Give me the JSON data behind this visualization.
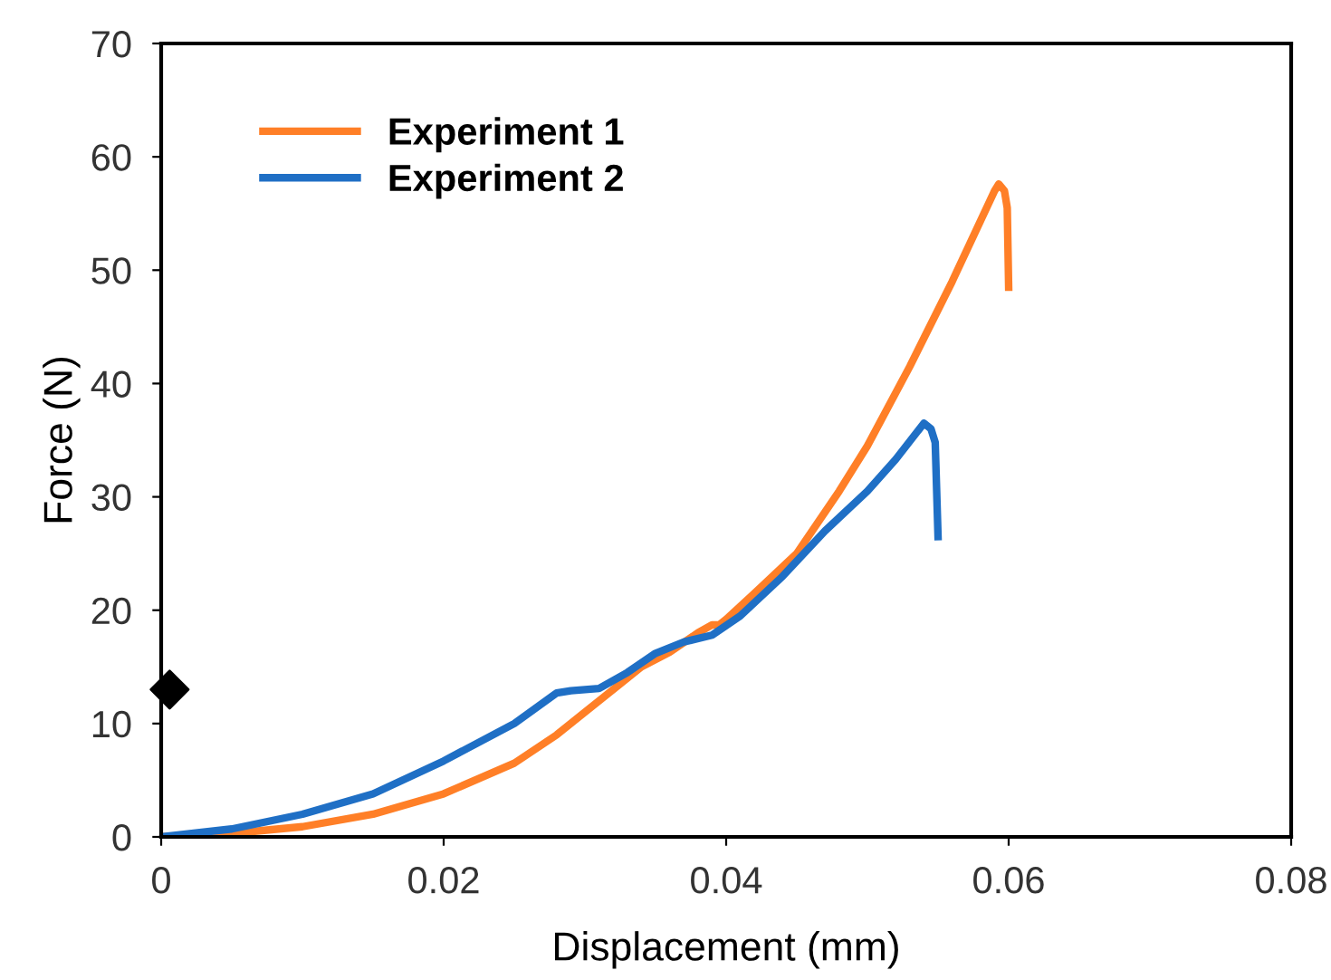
{
  "chart_data": {
    "type": "line",
    "xlabel": "Displacement (mm)",
    "ylabel": "Force (N)",
    "xlim": [
      0,
      0.08
    ],
    "xticks": [
      0,
      0.02,
      0.04,
      0.06,
      0.08
    ],
    "ylim": [
      0,
      70
    ],
    "yticks": [
      0,
      10,
      20,
      30,
      40,
      50,
      60,
      70
    ],
    "grid": false,
    "legend": "top left",
    "marker": "none",
    "line_style": "solid",
    "series": [
      {
        "name": "Experiment 1",
        "color": "#ff7f27",
        "x": [
          0,
          0.005,
          0.01,
          0.015,
          0.02,
          0.025,
          0.028,
          0.03,
          0.034,
          0.036,
          0.038,
          0.039,
          0.0395,
          0.04,
          0.042,
          0.045,
          0.048,
          0.05,
          0.053,
          0.056,
          0.059,
          0.0593,
          0.0597,
          0.0599,
          0.06
        ],
        "values": [
          0,
          0.3,
          0.9,
          2.0,
          3.8,
          6.5,
          9,
          11,
          15,
          16.3,
          18,
          18.7,
          18.7,
          19.2,
          21.5,
          25,
          30.5,
          34.5,
          41.5,
          49,
          57,
          57.6,
          57,
          55.5,
          48.5
        ]
      },
      {
        "name": "Experiment 2",
        "color": "#1f6fc5",
        "x": [
          0,
          0.005,
          0.01,
          0.015,
          0.02,
          0.025,
          0.028,
          0.029,
          0.031,
          0.033,
          0.035,
          0.037,
          0.039,
          0.041,
          0.044,
          0.047,
          0.05,
          0.052,
          0.054,
          0.0545,
          0.0548,
          0.055
        ],
        "values": [
          0,
          0.7,
          2.0,
          3.8,
          6.7,
          10,
          12.7,
          12.9,
          13.1,
          14.5,
          16.2,
          17.2,
          17.8,
          19.5,
          23,
          27,
          30.5,
          33.3,
          36.5,
          36,
          34.8,
          26.5
        ]
      },
      {
        "type": "scatter",
        "marker": "diamond",
        "color": "#000000",
        "x": [
          0.0006
        ],
        "values": [
          13
        ]
      }
    ]
  }
}
